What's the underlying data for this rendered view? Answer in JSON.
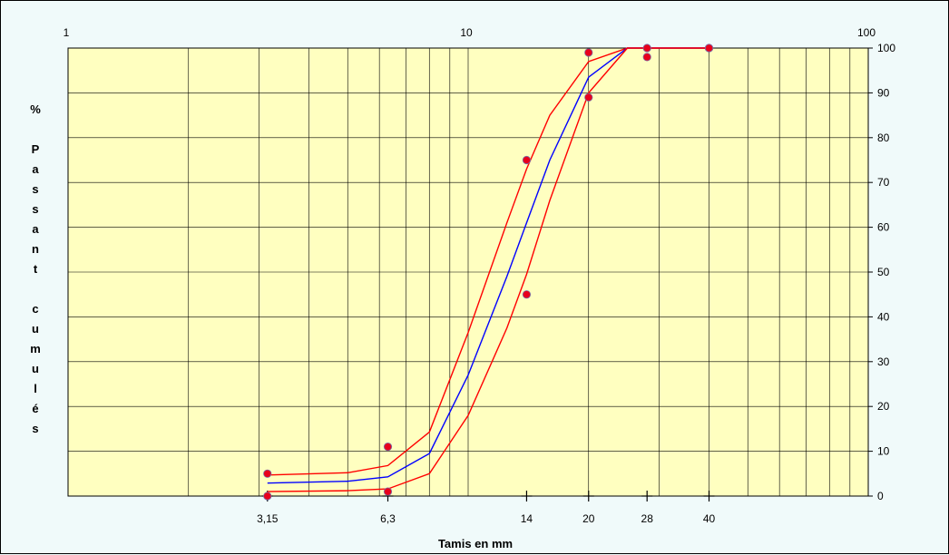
{
  "chart_data": {
    "type": "line",
    "title": "",
    "xlabel": "Tamis en mm",
    "ylabel": "% Passant cumulés",
    "ylabel_lines": [
      "%",
      "",
      "P",
      "a",
      "s",
      "s",
      "a",
      "n",
      "t",
      "",
      "c",
      "u",
      "m",
      "u",
      "l",
      "é",
      "s"
    ],
    "x_scale": "log",
    "xlim": [
      1,
      100
    ],
    "ylim": [
      0,
      100
    ],
    "y_ticks": [
      0,
      10,
      20,
      30,
      40,
      50,
      60,
      70,
      80,
      90,
      100
    ],
    "x_top_ticks": [
      "1",
      "10",
      "100"
    ],
    "x_bottom_ticks": [
      {
        "value": 3.15,
        "label": "3,15"
      },
      {
        "value": 6.3,
        "label": "6,3"
      },
      {
        "value": 14,
        "label": "14"
      },
      {
        "value": 20,
        "label": "20"
      },
      {
        "value": 28,
        "label": "28"
      },
      {
        "value": 40,
        "label": "40"
      }
    ],
    "grid": true,
    "series": [
      {
        "kind": "line",
        "color": "#ff0000",
        "points": [
          [
            3.15,
            4.7
          ],
          [
            5,
            5.2
          ],
          [
            6.3,
            6.8
          ],
          [
            8,
            14.3
          ],
          [
            10,
            36.5
          ],
          [
            12.5,
            61
          ],
          [
            14,
            73
          ],
          [
            16,
            85
          ],
          [
            20,
            97
          ],
          [
            25,
            100
          ],
          [
            40,
            100
          ]
        ]
      },
      {
        "kind": "line",
        "color": "#0000ff",
        "points": [
          [
            3.15,
            2.9
          ],
          [
            5,
            3.3
          ],
          [
            6.3,
            4.3
          ],
          [
            8,
            9.5
          ],
          [
            10,
            27
          ],
          [
            12.5,
            49
          ],
          [
            14,
            61
          ],
          [
            16,
            75
          ],
          [
            20,
            93.5
          ],
          [
            25,
            100
          ],
          [
            40,
            100
          ]
        ]
      },
      {
        "kind": "line",
        "color": "#ff0000",
        "points": [
          [
            3.15,
            1.0
          ],
          [
            5,
            1.2
          ],
          [
            6.3,
            1.6
          ],
          [
            8,
            5.0
          ],
          [
            10,
            18
          ],
          [
            12.5,
            37.5
          ],
          [
            14,
            49.5
          ],
          [
            16,
            66
          ],
          [
            20,
            90
          ],
          [
            25,
            100
          ],
          [
            40,
            100
          ]
        ]
      },
      {
        "kind": "scatter",
        "color": "#e8001c",
        "points": [
          [
            3.15,
            5
          ],
          [
            3.15,
            0
          ],
          [
            6.3,
            11
          ],
          [
            6.3,
            1
          ],
          [
            14,
            75
          ],
          [
            14,
            45
          ],
          [
            20,
            99
          ],
          [
            20,
            89
          ],
          [
            28,
            100
          ],
          [
            28,
            98
          ],
          [
            40,
            100
          ],
          [
            40,
            100
          ]
        ]
      }
    ]
  }
}
